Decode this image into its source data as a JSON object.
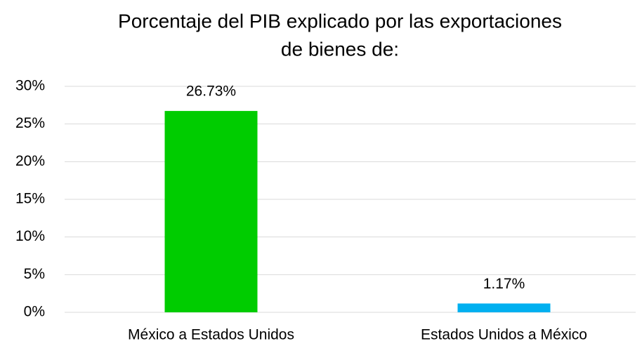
{
  "chart_data": {
    "type": "bar",
    "title": [
      "Porcentaje del PIB explicado por las exportaciones",
      "de bienes de:"
    ],
    "categories": [
      "México a Estados Unidos",
      "Estados Unidos a México"
    ],
    "values": [
      26.73,
      1.17
    ],
    "value_labels": [
      "26.73%",
      "1.17%"
    ],
    "colors": [
      "#00cc00",
      "#00b0f0"
    ],
    "ylim": [
      0,
      30
    ],
    "yticks": [
      {
        "value": 0,
        "label": "0%"
      },
      {
        "value": 5,
        "label": "5%"
      },
      {
        "value": 10,
        "label": "10%"
      },
      {
        "value": 15,
        "label": "15%"
      },
      {
        "value": 20,
        "label": "20%"
      },
      {
        "value": 25,
        "label": "25%"
      },
      {
        "value": 30,
        "label": "30%"
      }
    ],
    "grid": true
  }
}
